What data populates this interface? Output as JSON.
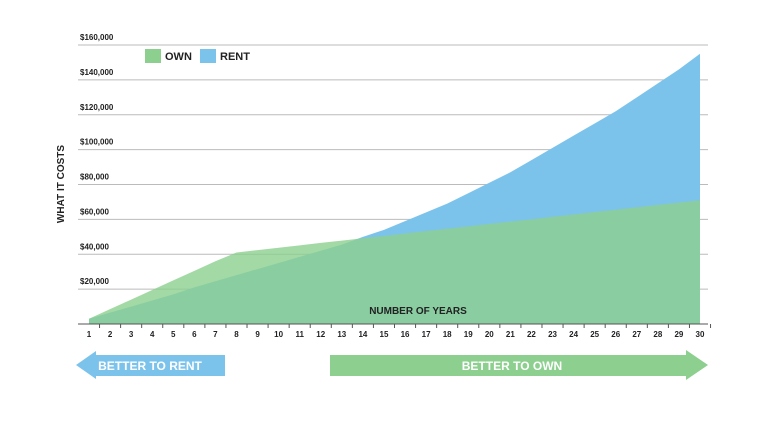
{
  "chart_data": {
    "type": "area",
    "y_label": "WHAT IT COSTS",
    "x_label": "NUMBER OF YEARS",
    "categories": [
      "1",
      "2",
      "3",
      "4",
      "5",
      "6",
      "7",
      "8",
      "9",
      "10",
      "11",
      "12",
      "13",
      "14",
      "15",
      "16",
      "17",
      "18",
      "19",
      "20",
      "21",
      "22",
      "23",
      "24",
      "25",
      "26",
      "27",
      "28",
      "29",
      "30"
    ],
    "series": [
      {
        "name": "RENT",
        "color": "#7cc3ec",
        "values": [
          3000,
          6500,
          10000,
          13500,
          17000,
          21000,
          24500,
          28000,
          31500,
          35000,
          38500,
          42000,
          45500,
          50000,
          54000,
          59000,
          64000,
          69000,
          75000,
          81000,
          87000,
          94000,
          101000,
          108000,
          115000,
          122000,
          130000,
          138000,
          146000,
          155000
        ]
      },
      {
        "name": "OWN",
        "color": "#8ccf8e",
        "values": [
          3000,
          8500,
          14000,
          19500,
          25000,
          30500,
          36000,
          41000,
          42400,
          43700,
          45100,
          46500,
          47800,
          49200,
          50500,
          51900,
          53300,
          54600,
          56000,
          57400,
          58700,
          60000,
          61500,
          62800,
          64200,
          65500,
          66900,
          68300,
          69600,
          71000
        ]
      }
    ],
    "ylim": [
      0,
      160000
    ],
    "yticks": [
      {
        "value": 20000,
        "label": "$20,000"
      },
      {
        "value": 40000,
        "label": "$40,000"
      },
      {
        "value": 60000,
        "label": "$60,000"
      },
      {
        "value": 80000,
        "label": "$80,000"
      },
      {
        "value": 100000,
        "label": "$100,000"
      },
      {
        "value": 120000,
        "label": "$120,000"
      },
      {
        "value": 140000,
        "label": "$140,000"
      },
      {
        "value": 160000,
        "label": "$160,000"
      }
    ],
    "grid": true,
    "legend": "top-left",
    "annotations": [
      "BETTER TO RENT",
      "BETTER TO OWN"
    ]
  }
}
